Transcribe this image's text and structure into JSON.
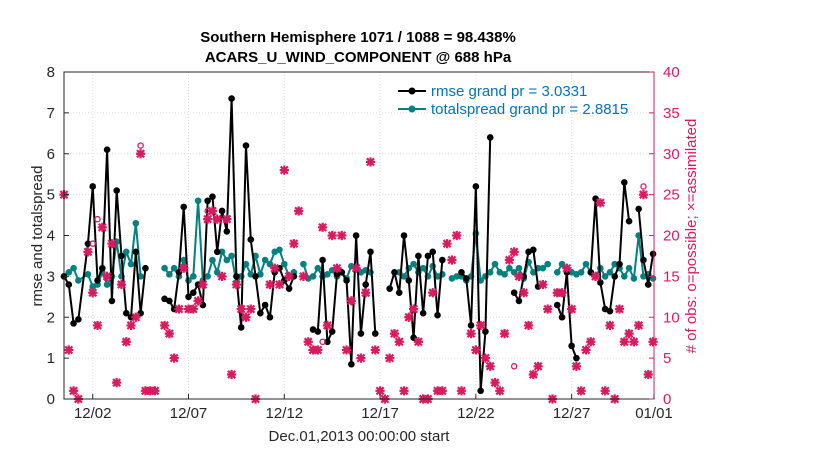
{
  "chart_data": {
    "type": "line",
    "title": "Southern Hemisphere 1071 / 1088 = 98.438%",
    "subtitle": "ACARS_U_WIND_COMPONENT @ 688 hPa",
    "xlabel": "Dec.01,2013 00:00:00 start",
    "ylabel": "rmse and totalspread",
    "ylabel_right": "# of obs: o=possible; ×=assimilated",
    "xlim": [
      0.5,
      31.3
    ],
    "ylim": [
      0,
      8
    ],
    "ylim_right": [
      0,
      40
    ],
    "xticks": [
      2,
      7,
      12,
      17,
      22,
      27,
      32
    ],
    "xtick_labels": [
      "12/02",
      "12/07",
      "12/12",
      "12/17",
      "12/22",
      "12/27",
      "01/01"
    ],
    "yticks": [
      0,
      1,
      2,
      3,
      4,
      5,
      6,
      7,
      8
    ],
    "yticks_right": [
      0,
      5,
      10,
      15,
      20,
      25,
      30,
      35,
      40
    ],
    "legend": [
      "rmse grand pr = 3.0331",
      "totalspread grand pr = 2.8815"
    ],
    "colors": {
      "rmse": "#000000",
      "spread": "#00807f",
      "obs": "#d81b60",
      "legend_text": "#0072bd",
      "axis": "#262626"
    },
    "series": [
      {
        "name": "rmse",
        "values": [
          [
            0.5,
            3.0
          ],
          [
            0.75,
            2.8
          ],
          [
            1.0,
            1.85
          ],
          [
            1.25,
            1.95
          ],
          [
            1.75,
            3.8
          ],
          [
            2.0,
            5.2
          ],
          [
            2.25,
            2.9
          ],
          [
            2.5,
            3.2
          ],
          [
            2.75,
            6.1
          ],
          [
            3.0,
            2.4
          ],
          [
            3.25,
            5.1
          ],
          [
            3.5,
            3.5
          ],
          [
            3.75,
            2.1
          ],
          [
            4.0,
            2.0
          ],
          [
            4.25,
            3.6
          ],
          [
            4.5,
            2.1
          ],
          [
            4.75,
            3.2
          ],
          null,
          [
            5.75,
            2.45
          ],
          [
            6.0,
            2.4
          ],
          [
            6.25,
            2.2
          ],
          [
            6.5,
            3.1
          ],
          [
            6.75,
            4.7
          ],
          [
            7.0,
            2.5
          ],
          [
            7.25,
            2.6
          ],
          [
            7.5,
            2.8
          ],
          [
            7.75,
            2.3
          ],
          [
            8.0,
            4.85
          ],
          [
            8.25,
            4.95
          ],
          [
            8.5,
            3.6
          ],
          [
            8.75,
            4.6
          ],
          [
            9.0,
            4.1
          ],
          [
            9.25,
            7.35
          ],
          [
            9.5,
            3.0
          ],
          [
            9.75,
            1.75
          ],
          [
            10.0,
            6.2
          ],
          [
            10.25,
            3.9
          ],
          [
            10.5,
            3.0
          ],
          [
            10.75,
            2.1
          ],
          [
            11.0,
            2.3
          ],
          [
            11.25,
            2.0
          ],
          [
            11.5,
            3.1
          ],
          [
            11.75,
            3.2
          ],
          [
            12.0,
            2.9
          ],
          [
            12.25,
            2.7
          ],
          [
            12.5,
            3.0
          ],
          null,
          [
            13.5,
            1.7
          ],
          [
            13.75,
            1.65
          ],
          [
            14.0,
            3.4
          ],
          [
            14.25,
            1.4
          ],
          [
            14.5,
            1.65
          ],
          [
            14.75,
            3.05
          ],
          [
            15.0,
            3.1
          ],
          [
            15.25,
            2.9
          ],
          [
            15.5,
            0.85
          ],
          [
            15.75,
            4.0
          ],
          [
            16.0,
            1.6
          ],
          [
            16.25,
            2.8
          ],
          [
            16.5,
            3.6
          ],
          [
            16.75,
            1.6
          ],
          null,
          [
            17.5,
            2.7
          ],
          [
            17.75,
            3.1
          ],
          [
            18.0,
            2.6
          ],
          [
            18.25,
            4.0
          ],
          [
            18.5,
            2.9
          ],
          [
            18.75,
            1.5
          ],
          [
            19.0,
            3.5
          ],
          [
            19.25,
            2.1
          ],
          [
            19.5,
            3.5
          ],
          [
            19.75,
            3.6
          ],
          [
            20.0,
            2.05
          ],
          [
            20.25,
            3.4
          ],
          null,
          [
            21.25,
            3.1
          ],
          [
            21.5,
            2.95
          ],
          [
            21.75,
            1.8
          ],
          [
            22.0,
            5.2
          ],
          [
            22.25,
            0.2
          ],
          [
            22.5,
            1.65
          ],
          [
            22.75,
            6.4
          ],
          null,
          [
            24.0,
            2.6
          ],
          [
            24.25,
            2.4
          ],
          [
            24.5,
            3.0
          ],
          [
            24.75,
            3.6
          ],
          [
            25.0,
            3.65
          ],
          [
            25.25,
            2.75
          ],
          null,
          [
            26.25,
            2.3
          ],
          [
            26.5,
            2.0
          ],
          [
            26.75,
            3.1
          ],
          [
            27.0,
            1.3
          ],
          [
            27.25,
            1.0
          ],
          null,
          [
            28.0,
            3.1
          ],
          [
            28.25,
            4.9
          ],
          [
            28.5,
            2.85
          ],
          [
            28.75,
            2.2
          ],
          [
            29.0,
            2.15
          ],
          [
            29.25,
            3.0
          ],
          [
            29.5,
            3.3
          ],
          [
            29.75,
            5.3
          ],
          [
            30.0,
            4.35
          ],
          null,
          [
            30.5,
            4.65
          ],
          [
            30.75,
            3.4
          ],
          [
            31.0,
            2.8
          ],
          [
            31.25,
            3.55
          ]
        ]
      },
      {
        "name": "totalspread",
        "values": [
          [
            0.5,
            3.0
          ],
          [
            0.75,
            3.1
          ],
          [
            1.0,
            3.2
          ],
          [
            1.25,
            2.9
          ],
          [
            1.75,
            3.05
          ],
          [
            2.0,
            2.75
          ],
          [
            2.25,
            2.8
          ],
          [
            2.5,
            3.1
          ],
          [
            2.75,
            2.8
          ],
          [
            3.0,
            3.0
          ],
          [
            3.25,
            3.85
          ],
          [
            3.5,
            3.0
          ],
          [
            3.75,
            3.6
          ],
          [
            4.0,
            3.3
          ],
          [
            4.25,
            4.3
          ],
          [
            4.5,
            3.0
          ],
          null,
          [
            5.75,
            3.2
          ],
          [
            6.0,
            3.05
          ],
          [
            6.25,
            3.2
          ],
          [
            6.5,
            3.0
          ],
          [
            6.75,
            3.4
          ],
          [
            7.0,
            2.9
          ],
          [
            7.25,
            3.0
          ],
          [
            7.5,
            4.85
          ],
          [
            7.75,
            2.9
          ],
          [
            8.0,
            3.0
          ],
          [
            8.25,
            3.4
          ],
          [
            8.5,
            3.1
          ],
          [
            8.75,
            3.6
          ],
          [
            9.0,
            3.4
          ],
          [
            9.25,
            3.5
          ],
          [
            9.5,
            2.85
          ],
          [
            9.75,
            3.0
          ],
          [
            10.0,
            3.3
          ],
          [
            10.25,
            3.05
          ],
          [
            10.5,
            3.5
          ],
          [
            10.75,
            3.05
          ],
          [
            11.0,
            3.4
          ],
          [
            11.25,
            3.3
          ],
          [
            11.5,
            3.6
          ],
          [
            11.75,
            3.65
          ],
          [
            12.0,
            3.3
          ],
          [
            12.25,
            3.0
          ],
          [
            12.5,
            3.1
          ],
          null,
          [
            13.0,
            3.3
          ],
          [
            13.25,
            2.95
          ],
          [
            13.5,
            3.0
          ],
          [
            13.75,
            3.2
          ],
          [
            14.0,
            3.0
          ],
          [
            14.25,
            3.05
          ],
          [
            14.5,
            3.15
          ],
          [
            14.75,
            3.0
          ],
          [
            15.0,
            3.1
          ],
          [
            15.25,
            2.95
          ],
          [
            15.5,
            3.25
          ],
          [
            15.75,
            3.2
          ],
          [
            16.0,
            3.1
          ],
          [
            16.25,
            3.15
          ],
          [
            16.5,
            3.1
          ],
          null,
          [
            18.0,
            3.1
          ],
          [
            18.25,
            3.0
          ],
          [
            18.5,
            3.2
          ],
          [
            18.75,
            3.3
          ],
          [
            19.0,
            3.1
          ],
          [
            19.25,
            3.2
          ],
          [
            19.5,
            3.0
          ],
          [
            19.75,
            3.25
          ],
          [
            20.0,
            3.0
          ],
          [
            20.25,
            3.05
          ],
          null,
          [
            20.75,
            2.95
          ],
          [
            21.0,
            3.0
          ],
          [
            21.25,
            3.0
          ],
          [
            21.5,
            2.9
          ],
          [
            21.75,
            3.0
          ],
          [
            22.0,
            4.05
          ],
          [
            22.25,
            2.9
          ],
          [
            22.5,
            3.0
          ],
          [
            22.75,
            3.1
          ],
          [
            23.0,
            3.3
          ],
          [
            23.25,
            3.1
          ],
          [
            23.5,
            3.05
          ],
          [
            23.75,
            3.2
          ],
          [
            24.0,
            3.1
          ],
          [
            24.25,
            3.2
          ],
          [
            24.5,
            2.95
          ],
          [
            24.75,
            3.35
          ],
          [
            25.0,
            3.1
          ],
          [
            25.25,
            3.2
          ],
          [
            25.5,
            3.2
          ],
          [
            25.75,
            3.3
          ],
          null,
          [
            26.25,
            3.1
          ],
          [
            26.5,
            3.3
          ],
          [
            26.75,
            3.15
          ],
          [
            27.0,
            3.1
          ],
          [
            27.25,
            3.05
          ],
          [
            27.5,
            3.1
          ],
          [
            27.75,
            3.3
          ],
          [
            28.0,
            3.1
          ],
          [
            28.25,
            3.0
          ],
          [
            28.5,
            3.2
          ],
          [
            28.75,
            3.0
          ],
          [
            29.0,
            3.1
          ],
          [
            29.25,
            3.3
          ],
          [
            29.5,
            3.2
          ],
          [
            29.75,
            3.0
          ],
          [
            30.0,
            3.2
          ],
          [
            30.25,
            2.95
          ],
          [
            30.5,
            4.0
          ],
          [
            30.75,
            3.0
          ],
          [
            31.0,
            3.05
          ],
          [
            31.25,
            2.95
          ]
        ]
      }
    ],
    "obs_assimilated": [
      [
        0.5,
        25
      ],
      [
        0.75,
        6
      ],
      [
        1.0,
        1
      ],
      [
        1.25,
        0
      ],
      [
        1.75,
        18
      ],
      [
        2.0,
        13
      ],
      [
        2.25,
        9
      ],
      [
        2.5,
        21
      ],
      [
        2.75,
        15
      ],
      [
        3.0,
        19
      ],
      [
        3.25,
        2
      ],
      [
        3.5,
        14
      ],
      [
        3.75,
        7
      ],
      [
        4.0,
        9
      ],
      [
        4.25,
        10
      ],
      [
        4.5,
        30
      ],
      [
        4.75,
        1
      ],
      [
        5.0,
        1
      ],
      [
        5.25,
        1
      ],
      [
        5.75,
        9
      ],
      [
        6.0,
        8
      ],
      [
        6.25,
        5
      ],
      [
        6.5,
        11
      ],
      [
        6.75,
        16
      ],
      [
        7.0,
        11
      ],
      [
        7.25,
        11
      ],
      [
        7.5,
        12
      ],
      [
        7.75,
        14
      ],
      [
        8.0,
        22
      ],
      [
        8.25,
        23
      ],
      [
        8.5,
        22
      ],
      [
        8.75,
        15
      ],
      [
        9.0,
        22
      ],
      [
        9.25,
        3
      ],
      [
        9.5,
        14
      ],
      [
        9.75,
        11
      ],
      [
        10.0,
        10
      ],
      [
        10.25,
        11
      ],
      [
        10.5,
        0
      ],
      [
        11.25,
        14
      ],
      [
        11.5,
        16
      ],
      [
        11.75,
        14
      ],
      [
        12.0,
        28
      ],
      [
        12.25,
        15
      ],
      [
        12.5,
        19
      ],
      [
        12.75,
        23
      ],
      [
        13.0,
        15
      ],
      [
        13.25,
        7
      ],
      [
        13.5,
        6
      ],
      [
        13.75,
        6
      ],
      [
        14.0,
        21
      ],
      [
        14.25,
        9
      ],
      [
        14.5,
        20
      ],
      [
        14.75,
        16
      ],
      [
        15.0,
        20
      ],
      [
        15.25,
        6
      ],
      [
        15.5,
        12
      ],
      [
        15.75,
        16
      ],
      [
        16.0,
        5
      ],
      [
        16.25,
        13
      ],
      [
        16.5,
        29
      ],
      [
        16.75,
        6
      ],
      [
        17.0,
        1
      ],
      [
        17.25,
        0
      ],
      [
        17.5,
        5
      ],
      [
        17.75,
        8
      ],
      [
        18.0,
        7
      ],
      [
        18.25,
        1
      ],
      [
        18.5,
        10
      ],
      [
        18.75,
        11
      ],
      [
        19.0,
        7
      ],
      [
        19.25,
        0
      ],
      [
        19.5,
        0
      ],
      [
        19.75,
        13
      ],
      [
        20.0,
        1
      ],
      [
        20.25,
        1
      ],
      [
        20.5,
        19
      ],
      [
        20.75,
        17
      ],
      [
        21.0,
        20
      ],
      [
        21.25,
        1
      ],
      [
        21.75,
        8
      ],
      [
        22.0,
        6
      ],
      [
        22.25,
        9
      ],
      [
        22.5,
        5
      ],
      [
        22.75,
        4
      ],
      [
        23.0,
        2
      ],
      [
        23.25,
        1
      ],
      [
        23.5,
        8
      ],
      [
        23.75,
        17
      ],
      [
        24.0,
        18
      ],
      [
        24.25,
        15
      ],
      [
        24.5,
        13
      ],
      [
        24.75,
        9
      ],
      [
        25.0,
        3
      ],
      [
        25.25,
        4
      ],
      [
        25.5,
        14
      ],
      [
        25.75,
        11
      ],
      [
        26.0,
        0
      ],
      [
        26.25,
        13
      ],
      [
        26.5,
        13
      ],
      [
        26.75,
        16
      ],
      [
        27.0,
        11
      ],
      [
        27.25,
        4
      ],
      [
        27.5,
        1
      ],
      [
        27.75,
        6
      ],
      [
        28.0,
        7
      ],
      [
        28.25,
        15
      ],
      [
        28.5,
        24
      ],
      [
        28.75,
        1
      ],
      [
        29.0,
        9
      ],
      [
        29.25,
        0
      ],
      [
        29.5,
        11
      ],
      [
        29.75,
        7
      ],
      [
        30.0,
        8
      ],
      [
        30.25,
        7
      ],
      [
        30.5,
        9
      ],
      [
        30.75,
        25
      ],
      [
        31.0,
        3
      ],
      [
        31.25,
        7
      ]
    ],
    "obs_possible": [
      [
        2.0,
        19
      ],
      [
        2.25,
        22
      ],
      [
        4.5,
        31
      ],
      [
        6.75,
        16
      ],
      [
        8.0,
        23
      ],
      [
        14.0,
        7
      ],
      [
        24.0,
        4
      ],
      [
        30.75,
        26
      ]
    ]
  }
}
